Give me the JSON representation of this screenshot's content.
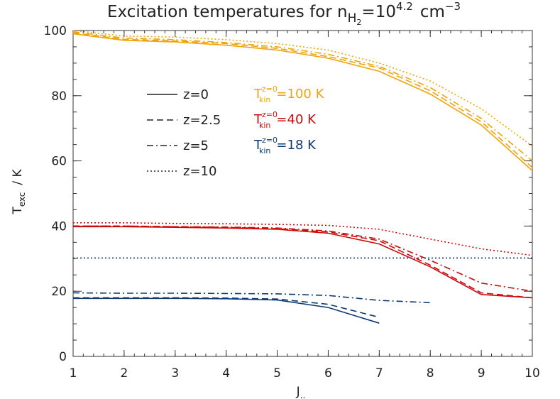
{
  "chart_data": {
    "type": "line",
    "title": {
      "main": "Excitation temperatures for n",
      "sub": "H",
      "subsub": "2",
      "mid": "=10",
      "sup": "4.2",
      "unit": "cm",
      "unit_sup": "−3"
    },
    "xlabel": "J",
    "xlabel_sub": "..",
    "ylabel": "T",
    "ylabel_sub": "exc",
    "ylabel_unit": "/ K",
    "xlim": [
      1,
      10
    ],
    "ylim": [
      0,
      100
    ],
    "xticks": [
      "1",
      "2",
      "3",
      "4",
      "5",
      "6",
      "7",
      "8",
      "9",
      "10"
    ],
    "yticks": [
      "0",
      "20",
      "40",
      "60",
      "80",
      "100"
    ],
    "grid": false,
    "legend": {
      "placement": "upper-left",
      "entries": [
        {
          "label": "z=0",
          "dash": "solid"
        },
        {
          "label": "z=2.5",
          "dash": "dashed"
        },
        {
          "label": "z=5",
          "dash": "dashdot"
        },
        {
          "label": "z=10",
          "dash": "dotted"
        }
      ]
    },
    "color_key": [
      {
        "pre": "T",
        "sup": "z=0",
        "sub": "kin",
        "value": "=100 K",
        "color": "#f0a30a"
      },
      {
        "pre": "T",
        "sup": "z=0",
        "sub": "kin",
        "value": "=40 K",
        "color": "#cc0a0a"
      },
      {
        "pre": "T",
        "sup": "z=0",
        "sub": "kin",
        "value": "=18 K",
        "color": "#0d3a73"
      }
    ],
    "series": [
      {
        "group": "100 K",
        "z": "0",
        "dash": "solid",
        "color": "#f0a30a",
        "x": [
          1,
          2,
          3,
          4,
          5,
          6,
          7,
          8,
          9,
          10
        ],
        "y": [
          99,
          97,
          96.5,
          95.5,
          94,
          91.5,
          87.5,
          80.5,
          71,
          57
        ]
      },
      {
        "group": "100 K",
        "z": "2.5",
        "dash": "dashed",
        "color": "#f0a30a",
        "x": [
          1,
          2,
          3,
          4,
          5,
          6,
          7,
          8,
          9,
          10
        ],
        "y": [
          99.3,
          97.3,
          96.8,
          96,
          94.5,
          92,
          88.5,
          81.5,
          72,
          58
        ]
      },
      {
        "group": "100 K",
        "z": "5",
        "dash": "dashdot",
        "color": "#f0a30a",
        "x": [
          1,
          2,
          3,
          4,
          5,
          6,
          7,
          8,
          9,
          10
        ],
        "y": [
          99.6,
          97.7,
          97.2,
          96.3,
          95,
          92.7,
          89,
          82.5,
          73,
          60
        ]
      },
      {
        "group": "100 K",
        "z": "10",
        "dash": "dotted",
        "color": "#f0a30a",
        "x": [
          1,
          2,
          3,
          4,
          5,
          6,
          7,
          8,
          9,
          10
        ],
        "y": [
          100,
          98.3,
          98,
          97.2,
          96,
          94,
          90,
          84.5,
          76,
          64.5
        ]
      },
      {
        "group": "40 K",
        "z": "0",
        "dash": "solid",
        "color": "#cc0a0a",
        "x": [
          1,
          2,
          3,
          4,
          5,
          6,
          7,
          8,
          9,
          10
        ],
        "y": [
          39.8,
          39.8,
          39.6,
          39.4,
          39,
          37.8,
          34.5,
          27.5,
          19,
          18
        ]
      },
      {
        "group": "40 K",
        "z": "2.5",
        "dash": "dashed",
        "color": "#cc0a0a",
        "x": [
          1,
          2,
          3,
          4,
          5,
          6,
          7,
          8,
          9,
          10
        ],
        "y": [
          40,
          40,
          39.8,
          39.6,
          39.2,
          38.2,
          35.5,
          28,
          19.5,
          18
        ]
      },
      {
        "group": "40 K",
        "z": "5",
        "dash": "dashdot",
        "color": "#cc0a0a",
        "x": [
          1,
          2,
          3,
          4,
          5,
          6,
          7,
          8,
          9,
          10
        ],
        "y": [
          40,
          40,
          39.8,
          39.7,
          39.4,
          38.5,
          36,
          29.5,
          22.5,
          20
        ]
      },
      {
        "group": "40 K",
        "z": "10",
        "dash": "dotted",
        "color": "#cc0a0a",
        "x": [
          1,
          2,
          3,
          4,
          5,
          6,
          7,
          8,
          9,
          10
        ],
        "y": [
          41,
          41,
          40.8,
          40.7,
          40.5,
          40.2,
          39,
          36,
          33,
          31
        ]
      },
      {
        "group": "18 K",
        "z": "0",
        "dash": "solid",
        "color": "#0d3a73",
        "x": [
          1,
          2,
          3,
          4,
          5,
          6,
          7
        ],
        "y": [
          17.8,
          17.8,
          17.8,
          17.7,
          17.3,
          15,
          10.2
        ]
      },
      {
        "group": "18 K",
        "z": "2.5",
        "dash": "dashed",
        "color": "#0d3a73",
        "x": [
          1,
          2,
          3,
          4,
          5,
          6,
          7
        ],
        "y": [
          18,
          18,
          18,
          17.9,
          17.6,
          16,
          12
        ]
      },
      {
        "group": "18 K",
        "z": "5",
        "dash": "dashdot",
        "color": "#0d3a73",
        "x": [
          1,
          2,
          3,
          4,
          5,
          6,
          7,
          8
        ],
        "y": [
          19.5,
          19.4,
          19.4,
          19.3,
          19.2,
          18.7,
          17.2,
          16.5
        ]
      },
      {
        "group": "18 K",
        "z": "10",
        "dash": "dotted",
        "color": "#0d3a73",
        "x": [
          1,
          10
        ],
        "y": [
          30.2,
          30.2
        ]
      }
    ]
  }
}
